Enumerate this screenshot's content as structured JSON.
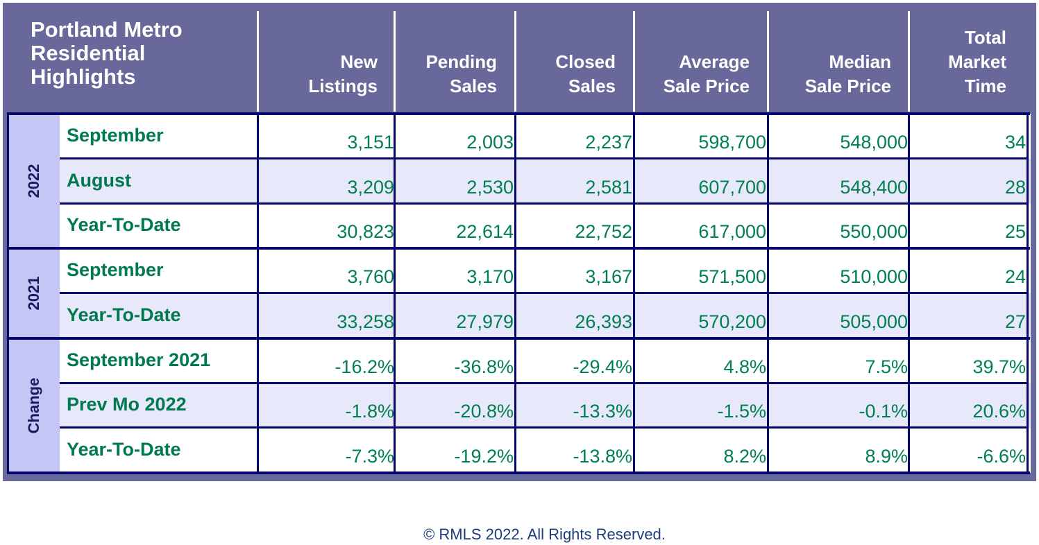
{
  "title_lines": [
    "Portland Metro",
    "Residential",
    "Highlights"
  ],
  "columns": [
    {
      "line1": "New",
      "line2": "Listings",
      "line3": ""
    },
    {
      "line1": "Pending",
      "line2": "Sales",
      "line3": ""
    },
    {
      "line1": "Closed",
      "line2": "Sales",
      "line3": ""
    },
    {
      "line1": "Average",
      "line2": "Sale Price",
      "line3": ""
    },
    {
      "line1": "Median",
      "line2": "Sale Price",
      "line3": ""
    },
    {
      "line1": "Total",
      "line2": "Market",
      "line3": "Time"
    }
  ],
  "groups": [
    {
      "label": "2022",
      "rows": [
        {
          "label": "September",
          "values": [
            "3,151",
            "2,003",
            "2,237",
            "598,700",
            "548,000",
            "34"
          ]
        },
        {
          "label": "August",
          "values": [
            "3,209",
            "2,530",
            "2,581",
            "607,700",
            "548,400",
            "28"
          ]
        },
        {
          "label": "Year-To-Date",
          "values": [
            "30,823",
            "22,614",
            "22,752",
            "617,000",
            "550,000",
            "25"
          ]
        }
      ]
    },
    {
      "label": "2021",
      "rows": [
        {
          "label": "September",
          "values": [
            "3,760",
            "3,170",
            "3,167",
            "571,500",
            "510,000",
            "24"
          ]
        },
        {
          "label": "Year-To-Date",
          "values": [
            "33,258",
            "27,979",
            "26,393",
            "570,200",
            "505,000",
            "27"
          ]
        }
      ]
    },
    {
      "label": "Change",
      "rows": [
        {
          "label": "September 2021",
          "values": [
            "-16.2%",
            "-36.8%",
            "-29.4%",
            "4.8%",
            "7.5%",
            "39.7%"
          ]
        },
        {
          "label": "Prev Mo 2022",
          "values": [
            "-1.8%",
            "-20.8%",
            "-13.3%",
            "-1.5%",
            "-0.1%",
            "20.6%"
          ]
        },
        {
          "label": "Year-To-Date",
          "values": [
            "-7.3%",
            "-19.2%",
            "-13.8%",
            "8.2%",
            "8.9%",
            "-6.6%"
          ]
        }
      ]
    }
  ],
  "footer": "© RMLS 2022. All Rights Reserved.",
  "colors": {
    "header_bg": "#68689a",
    "row_label": "#007a4d",
    "value_text": "#00804f",
    "row_tint": "#e8e8fb",
    "year_band": "#c6c6f6",
    "grid_line": "#05056e",
    "footer_text": "#1c3d7a"
  }
}
